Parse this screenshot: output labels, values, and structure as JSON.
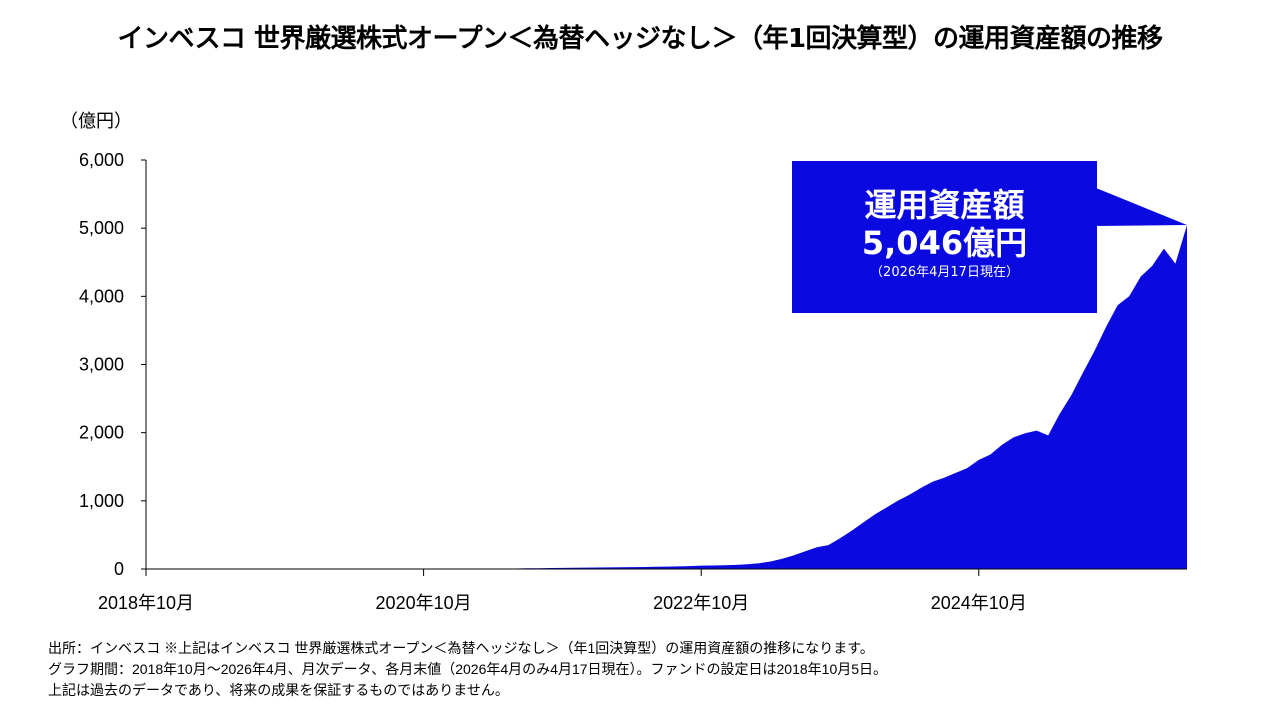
{
  "title": "インベスコ 世界厳選株式オープン＜為替ヘッジなし＞（年1回決算型）の運用資産額の推移",
  "chart_data": {
    "type": "area",
    "title": "インベスコ 世界厳選株式オープン＜為替ヘッジなし＞（年1回決算型）の運用資産額の推移",
    "ylabel": "（億円）",
    "xlabel": "",
    "ylim": [
      0,
      6000
    ],
    "yticks": [
      "0",
      "1,000",
      "2,000",
      "3,000",
      "4,000",
      "5,000",
      "6,000"
    ],
    "ytick_values": [
      0,
      1000,
      2000,
      3000,
      4000,
      5000,
      6000
    ],
    "xticks": [
      "2018年10月",
      "2020年10月",
      "2022年10月",
      "2024年10月"
    ],
    "xtick_month_index": [
      0,
      24,
      48,
      72
    ],
    "x_start": "2018年10月",
    "x_end": "2026年4月",
    "grid": false,
    "color": "#0a0ae0",
    "values": [
      0,
      0,
      0,
      0,
      0,
      0,
      0,
      0,
      0,
      0,
      0,
      0,
      0,
      0,
      0,
      0,
      0,
      0,
      0,
      0,
      0,
      0,
      0,
      0,
      0,
      0,
      0,
      2,
      3,
      4,
      5,
      6,
      8,
      10,
      12,
      14,
      16,
      18,
      20,
      22,
      24,
      26,
      28,
      30,
      32,
      35,
      38,
      42,
      50,
      52,
      55,
      60,
      70,
      85,
      110,
      150,
      200,
      260,
      320,
      350,
      450,
      560,
      680,
      800,
      900,
      1000,
      1090,
      1190,
      1280,
      1340,
      1410,
      1480,
      1600,
      1680,
      1820,
      1930,
      1990,
      2030,
      1960,
      2280,
      2550,
      2880,
      3200,
      3550,
      3870,
      4000,
      4290,
      4450,
      4700,
      4480,
      5046
    ]
  },
  "callout": {
    "label": "運用資産額",
    "value": "5,046億円",
    "date": "（2026年4月17日現在）",
    "color": "#0a0ae0"
  },
  "notes": [
    "出所：インベスコ ※上記はインベスコ 世界厳選株式オープン＜為替ヘッジなし＞（年1回決算型）の運用資産額の推移になります。",
    "グラフ期間：2018年10月～2026年4月、月次データ、各月末値（2026年4月のみ4月17日現在）。ファンドの設定日は2018年10月5日。",
    "上記は過去のデータであり、将来の成果を保証するものではありません。"
  ]
}
